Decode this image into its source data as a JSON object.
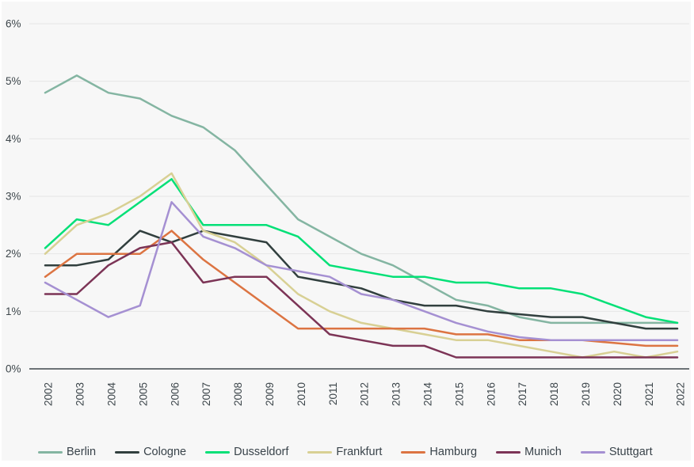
{
  "colors": {
    "background": "#f7f7f7",
    "gridline": "#e6e6e6",
    "axis_line": "#3e464b",
    "text": "#3d464b"
  },
  "chart_data": {
    "type": "line",
    "title": "",
    "xlabel": "",
    "ylabel": "",
    "x_categories": [
      "2002",
      "2003",
      "2004",
      "2005",
      "2006",
      "2007",
      "2008",
      "2009",
      "2010",
      "2011",
      "2012",
      "2013",
      "2014",
      "2015",
      "2016",
      "2017",
      "2018",
      "2019",
      "2020",
      "2021",
      "2022"
    ],
    "y_axis": {
      "min": 0,
      "max": 6,
      "tick_step": 1,
      "tick_labels": [
        "0%",
        "1%",
        "2%",
        "3%",
        "4%",
        "5%",
        "6%"
      ],
      "unit": "%"
    },
    "grid": true,
    "legend_position": "bottom",
    "series": [
      {
        "name": "Berlin",
        "color": "#84b5a2",
        "values": [
          4.8,
          5.1,
          4.8,
          4.7,
          4.4,
          4.2,
          3.8,
          3.2,
          2.6,
          2.3,
          2.0,
          1.8,
          1.5,
          1.2,
          1.1,
          0.9,
          0.8,
          0.8,
          0.8,
          0.8,
          0.8
        ]
      },
      {
        "name": "Cologne",
        "color": "#313f3e",
        "values": [
          1.8,
          1.8,
          1.9,
          2.4,
          2.2,
          2.4,
          2.3,
          2.2,
          1.6,
          1.5,
          1.4,
          1.2,
          1.1,
          1.1,
          1.0,
          0.95,
          0.9,
          0.9,
          0.8,
          0.7,
          0.7
        ]
      },
      {
        "name": "Dusseldorf",
        "color": "#04e077",
        "values": [
          2.1,
          2.6,
          2.5,
          2.9,
          3.3,
          2.5,
          2.5,
          2.5,
          2.3,
          1.8,
          1.7,
          1.6,
          1.6,
          1.5,
          1.5,
          1.4,
          1.4,
          1.3,
          1.1,
          0.9,
          0.8
        ]
      },
      {
        "name": "Frankfurt",
        "color": "#d8d094",
        "values": [
          2.0,
          2.5,
          2.7,
          3.0,
          3.4,
          2.4,
          2.2,
          1.8,
          1.3,
          1.0,
          0.8,
          0.7,
          0.6,
          0.5,
          0.5,
          0.4,
          0.3,
          0.2,
          0.3,
          0.2,
          0.3
        ]
      },
      {
        "name": "Hamburg",
        "color": "#dc7442",
        "values": [
          1.6,
          2.0,
          2.0,
          2.0,
          2.4,
          1.9,
          1.5,
          1.1,
          0.7,
          0.7,
          0.7,
          0.7,
          0.7,
          0.6,
          0.6,
          0.5,
          0.5,
          0.5,
          0.45,
          0.4,
          0.4
        ]
      },
      {
        "name": "Munich",
        "color": "#7c3456",
        "values": [
          1.3,
          1.3,
          1.8,
          2.1,
          2.2,
          1.5,
          1.6,
          1.6,
          1.1,
          0.6,
          0.5,
          0.4,
          0.4,
          0.2,
          0.2,
          0.2,
          0.2,
          0.2,
          0.2,
          0.2,
          0.2
        ]
      },
      {
        "name": "Stuttgart",
        "color": "#a590d2",
        "values": [
          1.5,
          1.2,
          0.9,
          1.1,
          2.9,
          2.3,
          2.1,
          1.8,
          1.7,
          1.6,
          1.3,
          1.2,
          1.0,
          0.8,
          0.65,
          0.55,
          0.5,
          0.5,
          0.5,
          0.5,
          0.5
        ]
      }
    ]
  }
}
